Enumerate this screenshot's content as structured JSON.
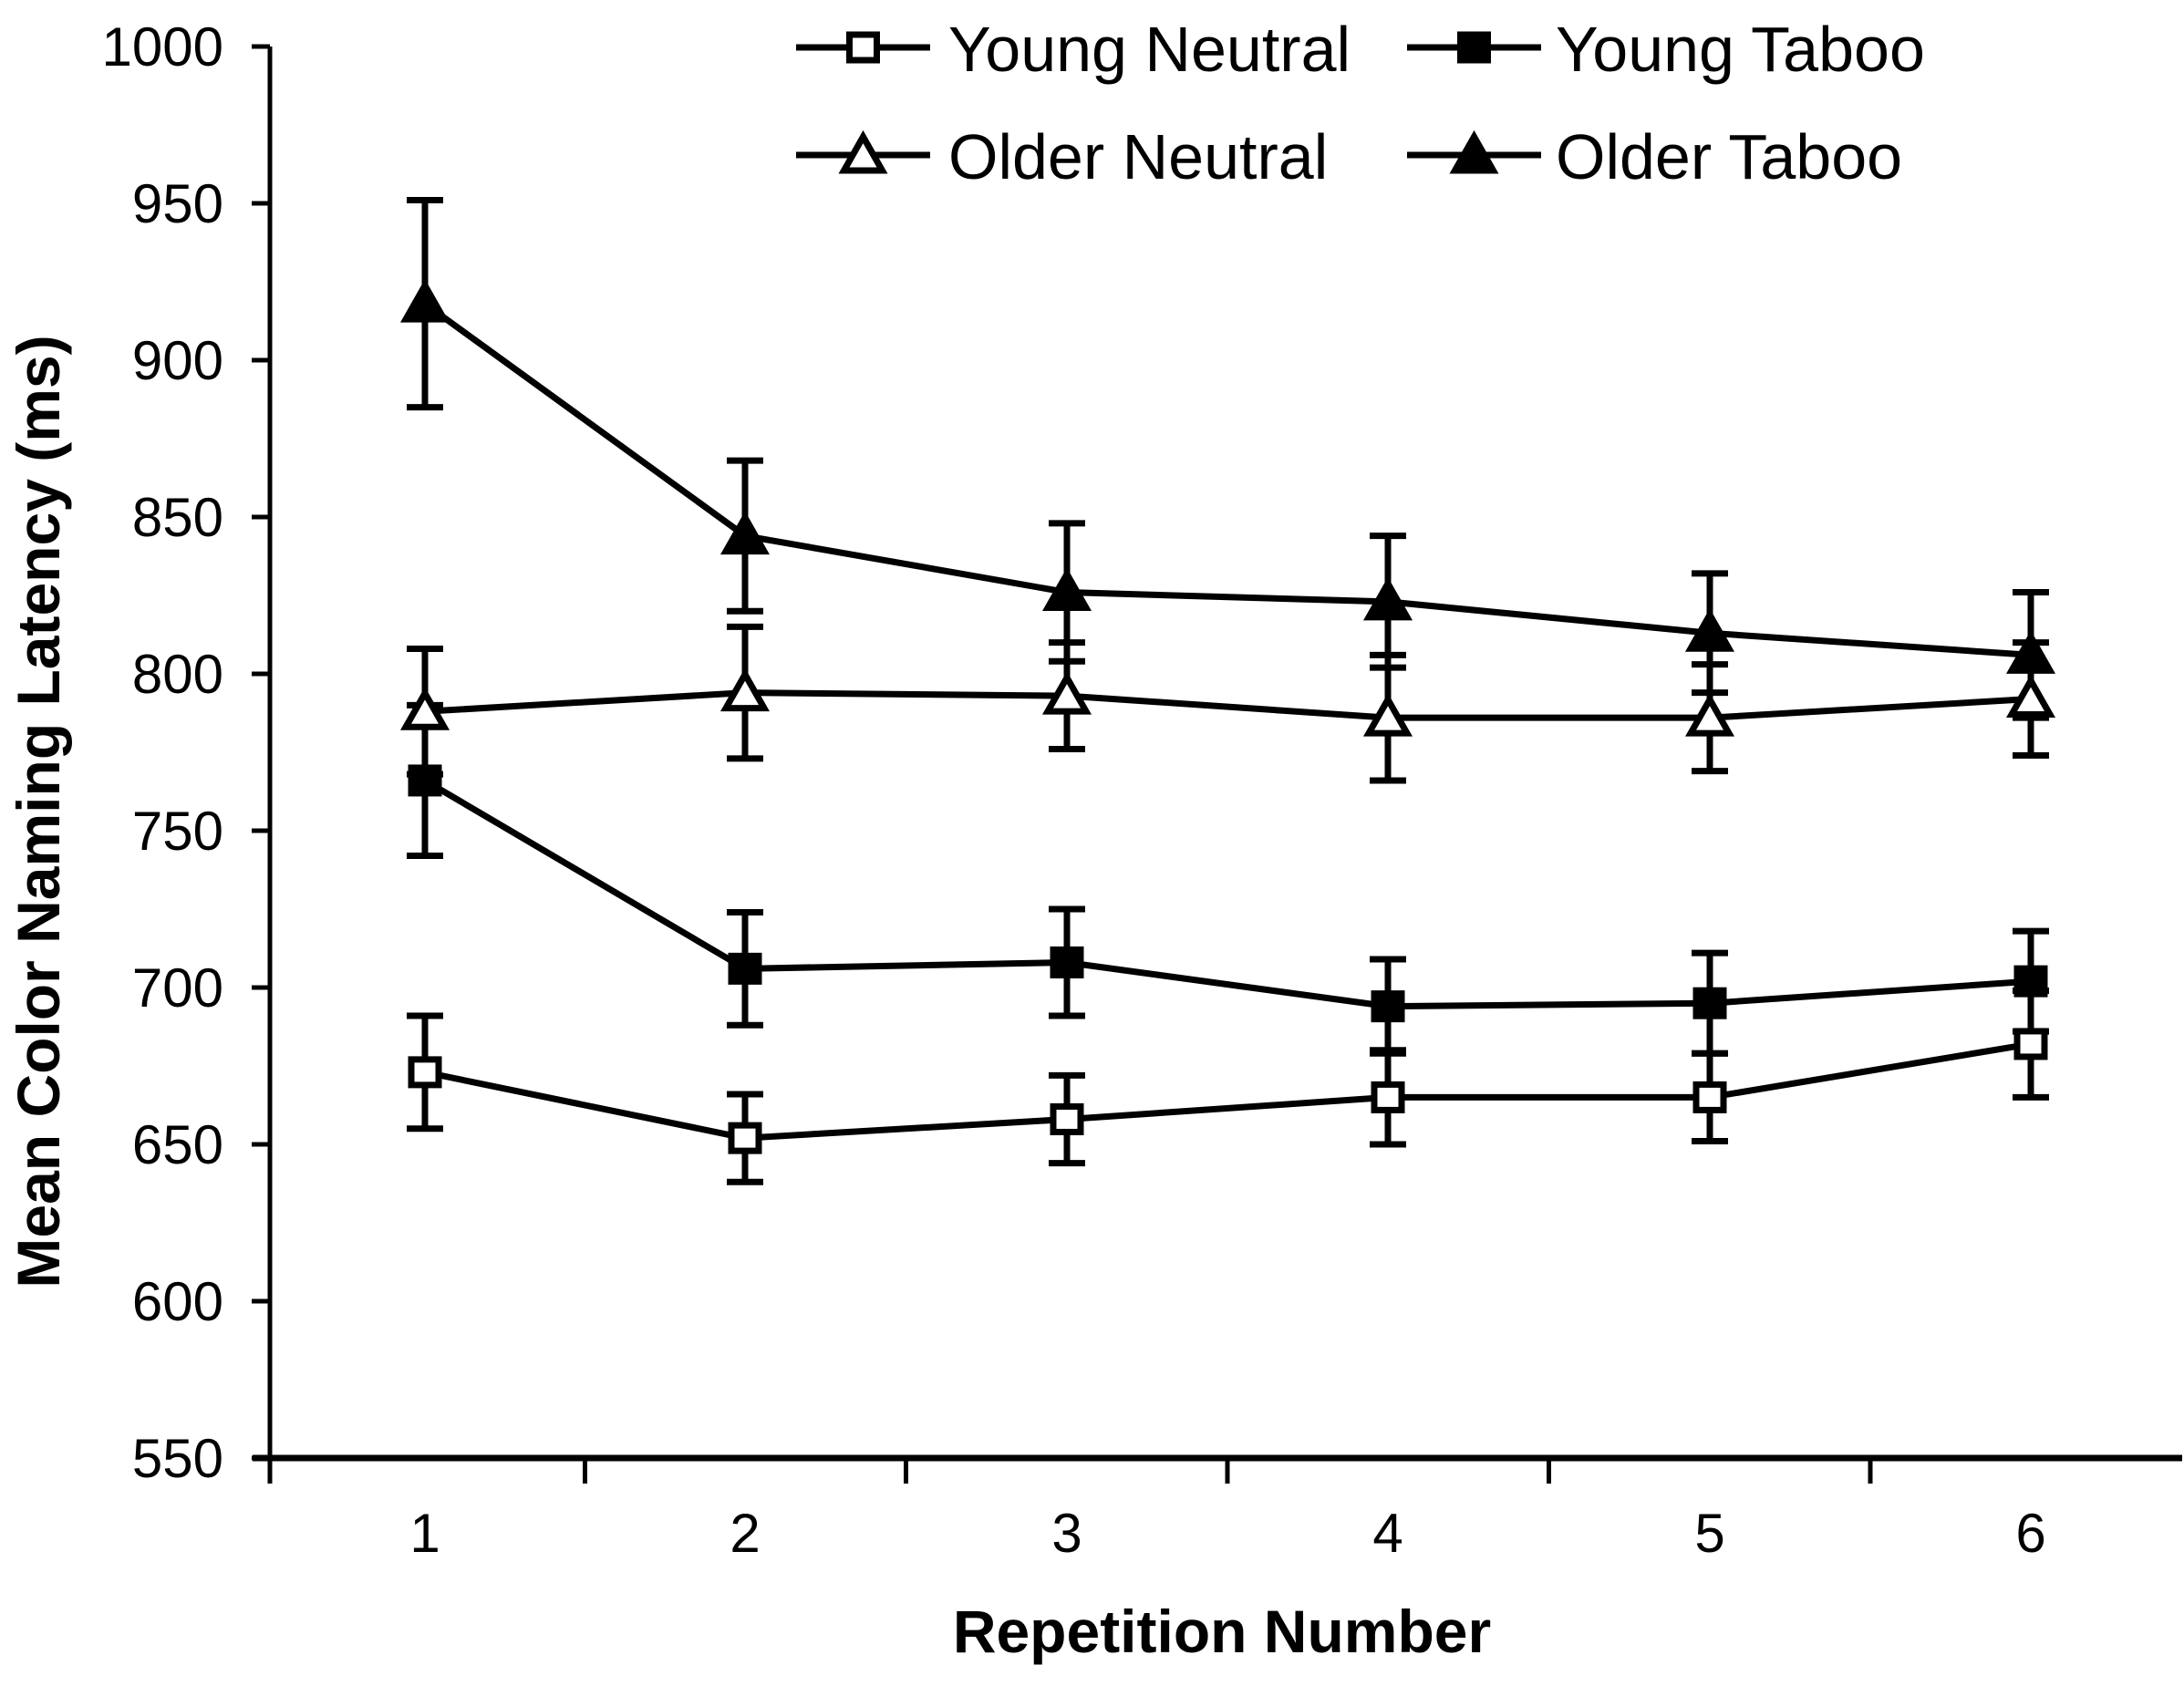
{
  "chart_data": {
    "type": "line",
    "title": "",
    "xlabel": "Repetition Number",
    "ylabel": "Mean Color Naming Latency (ms)",
    "x": [
      1,
      2,
      3,
      4,
      5,
      6
    ],
    "x_tick_labels": [
      "1",
      "2",
      "3",
      "4",
      "5",
      "6"
    ],
    "ylim": [
      550,
      1000
    ],
    "y_ticks": [
      550,
      600,
      650,
      700,
      750,
      800,
      850,
      900,
      950,
      1000
    ],
    "grid": false,
    "error_bars": true,
    "legend_position": "top",
    "legend_rows": [
      [
        "Young Neutral",
        "Young Taboo"
      ],
      [
        "Older Neutral",
        "Older Taboo"
      ]
    ],
    "series": [
      {
        "name": "Young Neutral",
        "marker": "square-open",
        "values": [
          673,
          652,
          658,
          665,
          665,
          682
        ],
        "errors": [
          18,
          14,
          14,
          15,
          14,
          17
        ]
      },
      {
        "name": "Young Taboo",
        "marker": "square-filled",
        "values": [
          766,
          706,
          708,
          694,
          695,
          702
        ],
        "errors": [
          24,
          18,
          17,
          15,
          16,
          16
        ]
      },
      {
        "name": "Older Neutral",
        "marker": "triangle-open",
        "values": [
          788,
          794,
          793,
          786,
          786,
          792
        ],
        "errors": [
          20,
          21,
          17,
          20,
          17,
          18
        ]
      },
      {
        "name": "Older Taboo",
        "marker": "triangle-filled",
        "values": [
          918,
          844,
          826,
          823,
          813,
          806
        ],
        "errors": [
          33,
          24,
          22,
          21,
          19,
          20
        ]
      }
    ],
    "colors": {
      "foreground": "#000000",
      "background": "#ffffff"
    }
  }
}
